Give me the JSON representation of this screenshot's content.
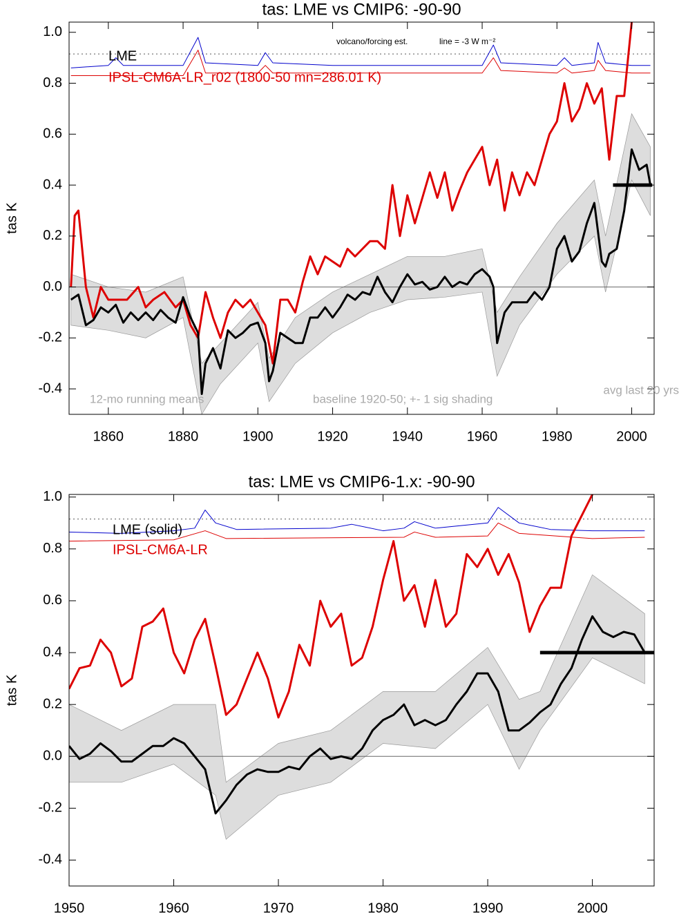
{
  "chart_data": [
    {
      "type": "line",
      "title": "tas: LME vs CMIP6: -90-90",
      "ylabel": "tas K",
      "xlim": [
        1849.5,
        2006
      ],
      "ylim": [
        -0.5,
        1.04
      ],
      "xticks": [
        1860,
        1880,
        1900,
        1920,
        1940,
        1960,
        1980,
        2000
      ],
      "yticks": [
        -0.4,
        -0.2,
        {
          "value": 0,
          "label": "0.0"
        },
        0.2,
        0.4,
        0.6,
        0.8,
        {
          "value": 1,
          "label": "1.0"
        }
      ],
      "ref_line": 0.915,
      "annotations": [
        "volcano/forcing est.",
        "line = -3 W m⁻²",
        "12-mo running means",
        "baseline 1920-50; +- 1 sig shading",
        "avg last 20 yrs"
      ],
      "band": {
        "color": "#dddddd",
        "x": [
          1850,
          1860,
          1870,
          1880,
          1885,
          1890,
          1900,
          1903,
          1910,
          1920,
          1930,
          1940,
          1950,
          1960,
          1964,
          1970,
          1980,
          1990,
          1993,
          2000,
          2005
        ],
        "lower": [
          -0.15,
          -0.17,
          -0.2,
          -0.12,
          -0.5,
          -0.38,
          -0.22,
          -0.45,
          -0.3,
          -0.18,
          -0.1,
          -0.05,
          -0.04,
          -0.02,
          -0.35,
          -0.15,
          0.05,
          0.2,
          -0.02,
          0.42,
          0.28
        ],
        "upper": [
          0.05,
          0,
          -0.02,
          0.04,
          -0.3,
          -0.22,
          -0.06,
          -0.28,
          -0.12,
          -0.02,
          0.05,
          0.12,
          0.12,
          0.15,
          -0.1,
          0.04,
          0.25,
          0.42,
          0.2,
          0.68,
          0.55
        ]
      },
      "hline": {
        "x": [
          1995,
          2005.5
        ],
        "value": 0.4,
        "color": "#000000"
      },
      "series": [
        {
          "color": "#0000cc",
          "x": [
            1850,
            1860,
            1862,
            1864,
            1880,
            1884,
            1886,
            1900,
            1902,
            1904,
            1920,
            1960,
            1963,
            1965,
            1980,
            1982,
            1984,
            1990,
            1991,
            1993,
            2000,
            2005
          ],
          "values": [
            0.86,
            0.87,
            0.9,
            0.87,
            0.87,
            0.98,
            0.88,
            0.87,
            0.92,
            0.88,
            0.87,
            0.87,
            0.95,
            0.88,
            0.87,
            0.9,
            0.87,
            0.88,
            0.96,
            0.88,
            0.87,
            0.87
          ]
        },
        {
          "color": "#dd0000",
          "x": [
            1850,
            1880,
            1884,
            1886,
            1900,
            1902,
            1904,
            1960,
            1963,
            1965,
            1980,
            1982,
            1984,
            1990,
            1991,
            1993,
            2000,
            2005
          ],
          "values": [
            0.83,
            0.83,
            0.93,
            0.84,
            0.84,
            0.87,
            0.84,
            0.84,
            0.9,
            0.85,
            0.84,
            0.86,
            0.84,
            0.85,
            0.89,
            0.85,
            0.84,
            0.84
          ]
        },
        {
          "name": "IPSL-CM6A-LR_r02 (1800-50 mn=286.01 K)",
          "color": "#dd0000",
          "x": [
            1850,
            1851,
            1852,
            1854,
            1856,
            1858,
            1860,
            1862,
            1865,
            1868,
            1870,
            1872,
            1875,
            1878,
            1880,
            1882,
            1884,
            1886,
            1888,
            1890,
            1892,
            1894,
            1896,
            1898,
            1900,
            1902,
            1904,
            1906,
            1908,
            1910,
            1912,
            1914,
            1916,
            1918,
            1920,
            1922,
            1924,
            1926,
            1928,
            1930,
            1932,
            1934,
            1936,
            1938,
            1940,
            1942,
            1944,
            1946,
            1948,
            1950,
            1952,
            1954,
            1956,
            1958,
            1960,
            1962,
            1964,
            1966,
            1968,
            1970,
            1972,
            1974,
            1976,
            1978,
            1980,
            1982,
            1984,
            1986,
            1988,
            1990,
            1992,
            1994,
            1996,
            1998,
            2000
          ],
          "values": [
            0,
            0.28,
            0.3,
            0,
            -0.12,
            0,
            -0.05,
            -0.05,
            -0.05,
            0,
            -0.08,
            -0.05,
            -0.02,
            -0.08,
            -0.05,
            -0.15,
            -0.2,
            -0.02,
            -0.12,
            -0.2,
            -0.1,
            -0.05,
            -0.08,
            -0.05,
            -0.1,
            -0.15,
            -0.3,
            -0.05,
            -0.05,
            -0.1,
            0.02,
            0.12,
            0.05,
            0.12,
            0.1,
            0.08,
            0.15,
            0.12,
            0.15,
            0.18,
            0.18,
            0.15,
            0.4,
            0.2,
            0.36,
            0.25,
            0.35,
            0.45,
            0.35,
            0.45,
            0.3,
            0.38,
            0.45,
            0.5,
            0.55,
            0.4,
            0.5,
            0.3,
            0.45,
            0.36,
            0.45,
            0.4,
            0.5,
            0.6,
            0.65,
            0.8,
            0.65,
            0.7,
            0.8,
            0.72,
            0.78,
            0.5,
            0.75,
            0.75,
            1.04
          ]
        },
        {
          "name": "LME",
          "color": "#000000",
          "x": [
            1850,
            1852,
            1854,
            1856,
            1858,
            1860,
            1862,
            1864,
            1866,
            1868,
            1870,
            1872,
            1874,
            1876,
            1878,
            1880,
            1882,
            1884,
            1885,
            1886,
            1888,
            1890,
            1892,
            1894,
            1896,
            1898,
            1900,
            1902,
            1903,
            1904,
            1906,
            1908,
            1910,
            1912,
            1914,
            1916,
            1918,
            1920,
            1922,
            1924,
            1926,
            1928,
            1930,
            1932,
            1934,
            1936,
            1938,
            1940,
            1942,
            1944,
            1946,
            1948,
            1950,
            1952,
            1954,
            1956,
            1958,
            1960,
            1962,
            1963,
            1964,
            1966,
            1968,
            1970,
            1972,
            1974,
            1976,
            1978,
            1980,
            1982,
            1984,
            1986,
            1988,
            1990,
            1992,
            1993,
            1994,
            1996,
            1998,
            2000,
            2002,
            2004,
            2005
          ],
          "values": [
            -0.05,
            -0.03,
            -0.15,
            -0.13,
            -0.08,
            -0.1,
            -0.07,
            -0.14,
            -0.1,
            -0.13,
            -0.1,
            -0.13,
            -0.09,
            -0.12,
            -0.14,
            -0.04,
            -0.12,
            -0.18,
            -0.42,
            -0.3,
            -0.24,
            -0.32,
            -0.17,
            -0.2,
            -0.18,
            -0.15,
            -0.14,
            -0.22,
            -0.37,
            -0.33,
            -0.18,
            -0.2,
            -0.22,
            -0.22,
            -0.12,
            -0.12,
            -0.08,
            -0.12,
            -0.08,
            -0.03,
            -0.05,
            -0.02,
            -0.03,
            0.04,
            -0.02,
            -0.06,
            0,
            0.05,
            0.01,
            0.02,
            -0.01,
            0,
            0.04,
            0,
            0.02,
            0.01,
            0.05,
            0.07,
            0.04,
            0,
            -0.22,
            -0.1,
            -0.06,
            -0.06,
            -0.06,
            -0.02,
            -0.05,
            0,
            0.15,
            0.2,
            0.1,
            0.14,
            0.25,
            0.33,
            0.1,
            0.08,
            0.13,
            0.15,
            0.3,
            0.54,
            0.46,
            0.48,
            0.4
          ]
        }
      ]
    },
    {
      "type": "line",
      "title": "tas: LME vs CMIP6-1.x: -90-90",
      "ylabel": "tas K",
      "xlim": [
        1950,
        2005.9
      ],
      "ylim": [
        -0.5,
        1.01
      ],
      "xticks": [
        1950,
        1960,
        1970,
        1980,
        1990,
        2000
      ],
      "yticks": [
        -0.4,
        -0.2,
        {
          "value": 0,
          "label": "0.0"
        },
        0.2,
        0.4,
        0.6,
        0.8,
        {
          "value": 1,
          "label": "1.0"
        }
      ],
      "ref_line": 0.915,
      "band": {
        "color": "#dddddd",
        "x": [
          1950,
          1955,
          1960,
          1964,
          1965,
          1970,
          1975,
          1980,
          1985,
          1990,
          1993,
          1995,
          2000,
          2005
        ],
        "lower": [
          -0.1,
          -0.1,
          -0.03,
          -0.15,
          -0.32,
          -0.15,
          -0.1,
          0.05,
          0.03,
          0.2,
          -0.05,
          0.1,
          0.38,
          0.28
        ],
        "upper": [
          0.2,
          0.1,
          0.2,
          0.2,
          -0.1,
          0.05,
          0.1,
          0.25,
          0.25,
          0.42,
          0.22,
          0.25,
          0.7,
          0.55
        ]
      },
      "hline": {
        "x": [
          1995,
          2006
        ],
        "value": 0.4,
        "color": "#000000"
      },
      "series": [
        {
          "color": "#0000cc",
          "x": [
            1950,
            1955,
            1960,
            1962,
            1963,
            1964,
            1966,
            1975,
            1977,
            1980,
            1982,
            1983,
            1985,
            1990,
            1991,
            1993,
            1996,
            2000,
            2005
          ],
          "values": [
            0.865,
            0.86,
            0.87,
            0.88,
            0.95,
            0.9,
            0.875,
            0.88,
            0.895,
            0.87,
            0.88,
            0.905,
            0.88,
            0.9,
            0.96,
            0.9,
            0.875,
            0.87,
            0.87
          ]
        },
        {
          "color": "#dd0000",
          "x": [
            1950,
            1960,
            1963,
            1965,
            1982,
            1983,
            1985,
            1990,
            1991,
            1993,
            2000,
            2005
          ],
          "values": [
            0.83,
            0.835,
            0.87,
            0.84,
            0.845,
            0.865,
            0.845,
            0.85,
            0.9,
            0.86,
            0.84,
            0.845
          ]
        },
        {
          "name": "IPSL-CM6A-LR",
          "color": "#dd0000",
          "x": [
            1950,
            1951,
            1952,
            1953,
            1954,
            1955,
            1956,
            1957,
            1958,
            1959,
            1960,
            1961,
            1962,
            1963,
            1964,
            1965,
            1966,
            1967,
            1968,
            1969,
            1970,
            1971,
            1972,
            1973,
            1974,
            1975,
            1976,
            1977,
            1978,
            1979,
            1980,
            1981,
            1982,
            1983,
            1984,
            1985,
            1986,
            1987,
            1988,
            1989,
            1990,
            1991,
            1992,
            1993,
            1994,
            1995,
            1996,
            1997,
            1998,
            1999,
            2000
          ],
          "values": [
            0.26,
            0.34,
            0.35,
            0.45,
            0.4,
            0.27,
            0.3,
            0.5,
            0.52,
            0.57,
            0.4,
            0.32,
            0.45,
            0.53,
            0.35,
            0.16,
            0.2,
            0.3,
            0.4,
            0.3,
            0.15,
            0.25,
            0.43,
            0.35,
            0.6,
            0.5,
            0.55,
            0.35,
            0.38,
            0.5,
            0.68,
            0.83,
            0.6,
            0.66,
            0.5,
            0.68,
            0.5,
            0.55,
            0.78,
            0.73,
            0.8,
            0.7,
            0.78,
            0.67,
            0.48,
            0.58,
            0.65,
            0.65,
            0.85,
            0.93,
            1.01
          ]
        },
        {
          "name": "LME (solid)",
          "color": "#000000",
          "x": [
            1950,
            1951,
            1952,
            1953,
            1954,
            1955,
            1956,
            1957,
            1958,
            1959,
            1960,
            1961,
            1962,
            1963,
            1964,
            1965,
            1966,
            1967,
            1968,
            1969,
            1970,
            1971,
            1972,
            1973,
            1974,
            1975,
            1976,
            1977,
            1978,
            1979,
            1980,
            1981,
            1982,
            1983,
            1984,
            1985,
            1986,
            1987,
            1988,
            1989,
            1990,
            1991,
            1992,
            1993,
            1994,
            1995,
            1996,
            1997,
            1998,
            1999,
            2000,
            2001,
            2002,
            2003,
            2004,
            2005
          ],
          "values": [
            0.04,
            -0.01,
            0.01,
            0.05,
            0.02,
            -0.02,
            -0.02,
            0.01,
            0.04,
            0.04,
            0.07,
            0.05,
            0,
            -0.05,
            -0.22,
            -0.17,
            -0.11,
            -0.07,
            -0.05,
            -0.06,
            -0.06,
            -0.04,
            -0.05,
            0,
            0.03,
            -0.01,
            0,
            -0.01,
            0.03,
            0.1,
            0.14,
            0.16,
            0.2,
            0.12,
            0.14,
            0.12,
            0.14,
            0.2,
            0.25,
            0.32,
            0.32,
            0.25,
            0.1,
            0.1,
            0.13,
            0.17,
            0.2,
            0.28,
            0.34,
            0.45,
            0.54,
            0.48,
            0.46,
            0.48,
            0.47,
            0.4
          ]
        }
      ]
    }
  ]
}
